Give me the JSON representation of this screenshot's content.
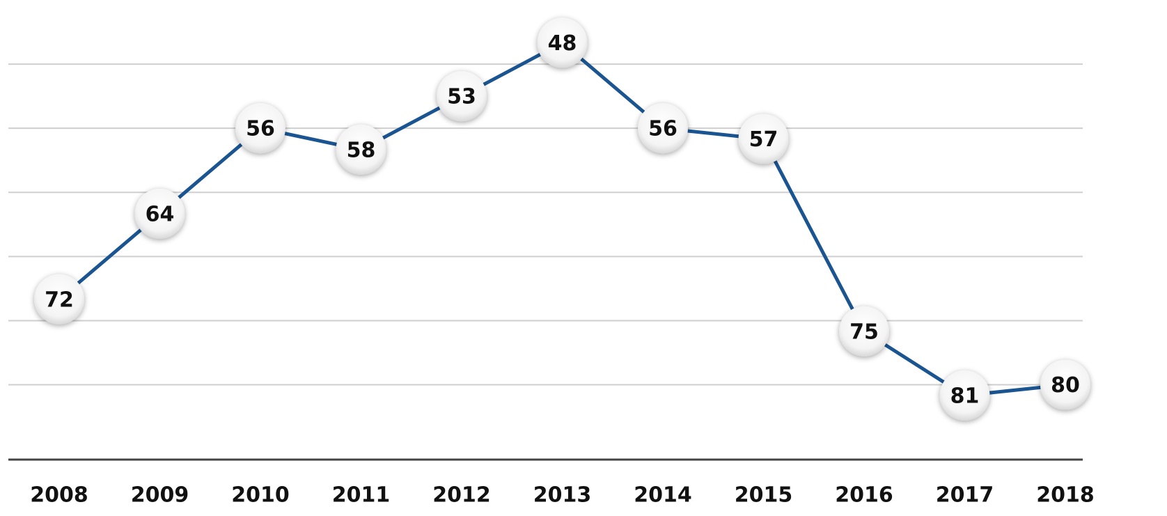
{
  "chart_data": {
    "type": "line",
    "x": [
      "2008",
      "2009",
      "2010",
      "2011",
      "2012",
      "2013",
      "2014",
      "2015",
      "2016",
      "2017",
      "2018"
    ],
    "series": [
      {
        "color": "#1a5592",
        "values": [
          72,
          64,
          56,
          58,
          53,
          48,
          56,
          57,
          75,
          81,
          80
        ]
      }
    ],
    "ylim": [
      87,
      44
    ],
    "yticks": [
      50,
      56,
      62,
      68,
      74,
      80
    ],
    "grid": true
  }
}
